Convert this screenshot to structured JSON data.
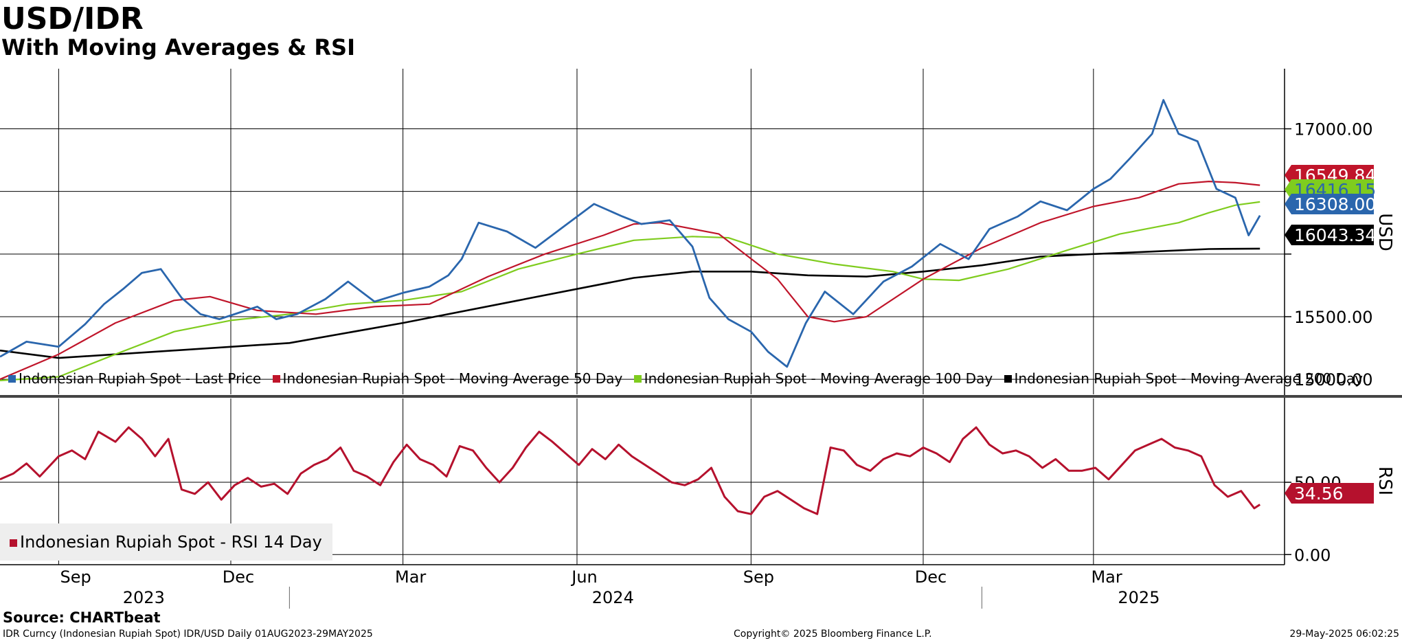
{
  "title": "USD/IDR",
  "subtitle": "With Moving Averages & RSI",
  "source": "Source: CHARTbeat",
  "footer": {
    "left": "IDR Curncy (Indonesian Rupiah Spot) IDR/USD  Daily 01AUG2023-29MAY2025",
    "center": "Copyright© 2025 Bloomberg Finance L.P.",
    "right": "29-May-2025 06:02:25"
  },
  "colors": {
    "price": "#2a66ad",
    "ma50": "#c0152a",
    "ma100": "#7fcc1e",
    "ma200": "#000000",
    "rsi": "#b5112d"
  },
  "chart_data": [
    {
      "type": "line",
      "panel": "price",
      "ylabel": "USD",
      "ylim": [
        14880,
        17480
      ],
      "yticks": [
        "17000.00",
        "15500.00",
        "15000.00"
      ],
      "grid": true,
      "legend_placement": "bottom",
      "x_ticks_months": [
        "Sep",
        "Dec",
        "Mar",
        "Jun",
        "Sep",
        "Dec",
        "Mar"
      ],
      "x_ticks_years": [
        "2023",
        "2024",
        "2025"
      ],
      "series": [
        {
          "name": "Indonesian Rupiah Spot - Last Price",
          "color_key": "price",
          "last_value": "16308.00",
          "x": [
            "2023-08-01",
            "2023-08-15",
            "2023-09-01",
            "2023-09-15",
            "2023-09-25",
            "2023-10-05",
            "2023-10-15",
            "2023-10-25",
            "2023-11-05",
            "2023-11-15",
            "2023-11-25",
            "2023-12-05",
            "2023-12-15",
            "2023-12-25",
            "2024-01-05",
            "2024-01-20",
            "2024-02-01",
            "2024-02-15",
            "2024-03-01",
            "2024-03-15",
            "2024-03-25",
            "2024-04-01",
            "2024-04-10",
            "2024-04-25",
            "2024-05-10",
            "2024-05-25",
            "2024-06-10",
            "2024-06-25",
            "2024-07-05",
            "2024-07-20",
            "2024-08-01",
            "2024-08-10",
            "2024-08-20",
            "2024-09-01",
            "2024-09-10",
            "2024-09-20",
            "2024-09-30",
            "2024-10-10",
            "2024-10-25",
            "2024-11-10",
            "2024-11-25",
            "2024-12-10",
            "2024-12-25",
            "2025-01-05",
            "2025-01-20",
            "2025-02-01",
            "2025-02-15",
            "2025-03-01",
            "2025-03-10",
            "2025-03-20",
            "2025-04-01",
            "2025-04-07",
            "2025-04-15",
            "2025-04-25",
            "2025-05-05",
            "2025-05-15",
            "2025-05-22",
            "2025-05-28"
          ],
          "y": [
            15180,
            15300,
            15260,
            15440,
            15600,
            15720,
            15850,
            15880,
            15650,
            15520,
            15480,
            15530,
            15580,
            15480,
            15520,
            15640,
            15780,
            15620,
            15690,
            15740,
            15830,
            15960,
            16250,
            16180,
            16050,
            16220,
            16400,
            16300,
            16240,
            16270,
            16060,
            15650,
            15480,
            15380,
            15220,
            15100,
            15450,
            15700,
            15520,
            15780,
            15900,
            16080,
            15960,
            16200,
            16300,
            16420,
            16350,
            16520,
            16600,
            16760,
            16960,
            17230,
            16960,
            16900,
            16520,
            16450,
            16150,
            16308
          ]
        },
        {
          "name": "Indonesian Rupiah Spot - Moving Average 50 Day",
          "color_key": "ma50",
          "last_value": "16549.84",
          "x": [
            "2023-08-01",
            "2023-09-01",
            "2023-10-01",
            "2023-11-01",
            "2023-11-20",
            "2023-12-15",
            "2024-01-15",
            "2024-02-15",
            "2024-03-15",
            "2024-04-15",
            "2024-05-15",
            "2024-06-15",
            "2024-07-01",
            "2024-07-15",
            "2024-08-15",
            "2024-09-15",
            "2024-10-01",
            "2024-10-15",
            "2024-11-01",
            "2024-12-01",
            "2025-01-01",
            "2025-02-01",
            "2025-03-01",
            "2025-03-25",
            "2025-04-15",
            "2025-05-01",
            "2025-05-15",
            "2025-05-28"
          ],
          "y": [
            15000,
            15200,
            15450,
            15630,
            15660,
            15550,
            15520,
            15580,
            15600,
            15820,
            16000,
            16150,
            16240,
            16250,
            16160,
            15800,
            15500,
            15460,
            15500,
            15800,
            16050,
            16250,
            16380,
            16450,
            16560,
            16580,
            16570,
            16549.84
          ]
        },
        {
          "name": "Indonesian Rupiah Spot - Moving Average 100 Day",
          "color_key": "ma100",
          "last_value": "16416.15",
          "x": [
            "2023-08-01",
            "2023-09-01",
            "2023-10-01",
            "2023-11-01",
            "2023-12-01",
            "2024-01-01",
            "2024-02-01",
            "2024-03-01",
            "2024-04-01",
            "2024-05-01",
            "2024-06-01",
            "2024-07-01",
            "2024-08-01",
            "2024-08-20",
            "2024-09-15",
            "2024-10-15",
            "2024-11-15",
            "2024-12-01",
            "2024-12-20",
            "2025-01-15",
            "2025-02-15",
            "2025-03-15",
            "2025-04-15",
            "2025-05-01",
            "2025-05-15",
            "2025-05-28"
          ],
          "y": [
            14990,
            15020,
            15200,
            15380,
            15470,
            15520,
            15600,
            15630,
            15700,
            15880,
            16000,
            16110,
            16140,
            16130,
            16000,
            15920,
            15860,
            15800,
            15790,
            15880,
            16030,
            16160,
            16250,
            16330,
            16390,
            16416.15
          ]
        },
        {
          "name": "Indonesian Rupiah Spot - Moving Average 200 Day",
          "color_key": "ma200",
          "last_value": "16043.34",
          "x": [
            "2023-08-01",
            "2023-09-01",
            "2023-11-01",
            "2024-01-01",
            "2024-03-01",
            "2024-05-01",
            "2024-07-01",
            "2024-08-01",
            "2024-09-01",
            "2024-10-01",
            "2024-11-01",
            "2024-12-01",
            "2025-01-01",
            "2025-02-01",
            "2025-03-01",
            "2025-04-01",
            "2025-05-01",
            "2025-05-28"
          ],
          "y": [
            15230,
            15170,
            15230,
            15290,
            15450,
            15630,
            15810,
            15860,
            15860,
            15830,
            15820,
            15860,
            15910,
            15980,
            16000,
            16020,
            16040,
            16043.34
          ]
        }
      ]
    },
    {
      "type": "line",
      "panel": "rsi",
      "ylabel": "RSI",
      "ylim": [
        -7,
        108
      ],
      "yticks": [
        "50.00",
        "0.00"
      ],
      "grid": true,
      "legend_placement": "bottom-left",
      "series": [
        {
          "name": "Indonesian Rupiah Spot - RSI 14 Day",
          "color_key": "rsi",
          "last_value": "34.56",
          "x": [
            "2023-08-01",
            "2023-08-08",
            "2023-08-15",
            "2023-08-22",
            "2023-09-01",
            "2023-09-08",
            "2023-09-15",
            "2023-09-22",
            "2023-10-01",
            "2023-10-08",
            "2023-10-15",
            "2023-10-22",
            "2023-10-29",
            "2023-11-05",
            "2023-11-12",
            "2023-11-19",
            "2023-11-26",
            "2023-12-03",
            "2023-12-10",
            "2023-12-17",
            "2023-12-24",
            "2023-12-31",
            "2024-01-07",
            "2024-01-14",
            "2024-01-21",
            "2024-01-28",
            "2024-02-04",
            "2024-02-11",
            "2024-02-18",
            "2024-02-25",
            "2024-03-03",
            "2024-03-10",
            "2024-03-17",
            "2024-03-24",
            "2024-03-31",
            "2024-04-07",
            "2024-04-14",
            "2024-04-21",
            "2024-04-28",
            "2024-05-05",
            "2024-05-12",
            "2024-05-19",
            "2024-05-26",
            "2024-06-02",
            "2024-06-09",
            "2024-06-16",
            "2024-06-23",
            "2024-06-30",
            "2024-07-07",
            "2024-07-14",
            "2024-07-21",
            "2024-07-28",
            "2024-08-04",
            "2024-08-11",
            "2024-08-18",
            "2024-08-25",
            "2024-09-01",
            "2024-09-08",
            "2024-09-15",
            "2024-09-22",
            "2024-09-29",
            "2024-10-06",
            "2024-10-13",
            "2024-10-20",
            "2024-10-27",
            "2024-11-03",
            "2024-11-10",
            "2024-11-17",
            "2024-11-24",
            "2024-12-01",
            "2024-12-08",
            "2024-12-15",
            "2024-12-22",
            "2024-12-29",
            "2025-01-05",
            "2025-01-12",
            "2025-01-19",
            "2025-01-26",
            "2025-02-02",
            "2025-02-09",
            "2025-02-16",
            "2025-02-23",
            "2025-03-02",
            "2025-03-09",
            "2025-03-16",
            "2025-03-23",
            "2025-03-30",
            "2025-04-06",
            "2025-04-13",
            "2025-04-20",
            "2025-04-27",
            "2025-05-04",
            "2025-05-11",
            "2025-05-18",
            "2025-05-25",
            "2025-05-28"
          ],
          "y": [
            52,
            56,
            63,
            54,
            68,
            72,
            66,
            85,
            78,
            88,
            80,
            68,
            80,
            45,
            42,
            50,
            38,
            48,
            53,
            47,
            49,
            42,
            56,
            62,
            66,
            74,
            58,
            54,
            48,
            64,
            76,
            66,
            62,
            54,
            75,
            72,
            60,
            50,
            60,
            74,
            85,
            78,
            70,
            62,
            73,
            66,
            76,
            68,
            62,
            56,
            50,
            48,
            52,
            60,
            40,
            30,
            28,
            40,
            44,
            38,
            32,
            28,
            74,
            72,
            62,
            58,
            66,
            70,
            68,
            74,
            70,
            64,
            80,
            88,
            76,
            70,
            72,
            68,
            60,
            66,
            58,
            58,
            60,
            52,
            62,
            72,
            76,
            80,
            74,
            72,
            68,
            48,
            40,
            44,
            32,
            34.56
          ]
        }
      ]
    }
  ]
}
